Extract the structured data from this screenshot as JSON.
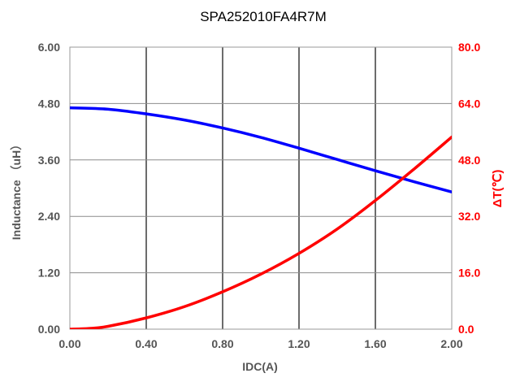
{
  "chart_data": {
    "type": "line",
    "title": "SPA252010FA4R7M",
    "xlabel": "IDC(A)",
    "ylabel_left": "Inductance （uH）",
    "ylabel_right": "ΔT(℃)",
    "xlim": [
      0,
      2.0
    ],
    "ylim_left": [
      0,
      6.0
    ],
    "ylim_right": [
      0,
      80.0
    ],
    "x_ticks": [
      "0.00",
      "0.40",
      "0.80",
      "1.20",
      "1.60",
      "2.00"
    ],
    "y_left_ticks": [
      "0.00",
      "1.20",
      "2.40",
      "3.60",
      "4.80",
      "6.00"
    ],
    "y_right_ticks": [
      "0.0",
      "16.0",
      "32.0",
      "48.0",
      "64.0",
      "80.0"
    ],
    "grid": true,
    "series": [
      {
        "axis": "left",
        "color": "#0000ff",
        "x": [
          0.0,
          0.2,
          0.4,
          0.6,
          0.8,
          1.0,
          1.2,
          1.4,
          1.6,
          1.8,
          2.0
        ],
        "values": [
          4.71,
          4.68,
          4.58,
          4.45,
          4.28,
          4.08,
          3.85,
          3.61,
          3.37,
          3.14,
          2.92
        ]
      },
      {
        "axis": "right",
        "color": "#ff0000",
        "x": [
          0.0,
          0.1,
          0.2,
          0.4,
          0.6,
          0.8,
          1.0,
          1.2,
          1.4,
          1.6,
          1.8,
          2.0
        ],
        "values": [
          0.0,
          0.2,
          0.8,
          3.2,
          6.4,
          10.6,
          15.6,
          21.5,
          28.4,
          36.5,
          45.3,
          54.5
        ]
      }
    ]
  }
}
